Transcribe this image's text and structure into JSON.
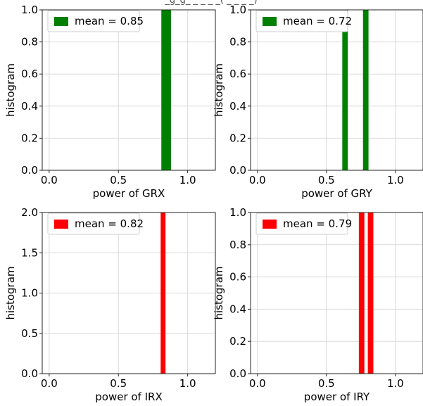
{
  "figure_title_fragment": "_g_g_ _ _ _ _( _ _ _ _)",
  "chart_data": [
    {
      "type": "bar",
      "xlabel": "power of GRX",
      "ylabel": "histogram",
      "xlim": [
        -0.05,
        1.2
      ],
      "ylim": [
        0,
        1.0
      ],
      "xticks": [
        0.0,
        0.5,
        1.0
      ],
      "xtick_labels": [
        "0.0",
        "0.5",
        "1.0"
      ],
      "yticks": [
        0.0,
        0.2,
        0.4,
        0.6,
        0.8,
        1.0
      ],
      "ytick_labels": [
        "0.0",
        "0.2",
        "0.4",
        "0.6",
        "0.8",
        "1.0"
      ],
      "bars": [
        {
          "x0": 0.81,
          "x1": 0.88,
          "value": 1
        }
      ],
      "color": "#008000",
      "legend": "mean = 0.85",
      "legend_position": "top-left",
      "grid": true
    },
    {
      "type": "bar",
      "xlabel": "power of GRY",
      "ylabel": "histogram",
      "xlim": [
        -0.05,
        1.2
      ],
      "ylim": [
        0,
        1.0
      ],
      "xticks": [
        0.0,
        0.5,
        1.0
      ],
      "xtick_labels": [
        "0.0",
        "0.5",
        "1.0"
      ],
      "yticks": [
        0.0,
        0.2,
        0.4,
        0.6,
        0.8,
        1.0
      ],
      "ytick_labels": [
        "0.0",
        "0.2",
        "0.4",
        "0.6",
        "0.8",
        "1.0"
      ],
      "bars": [
        {
          "x0": 0.615,
          "x1": 0.655,
          "value": 1
        },
        {
          "x0": 0.765,
          "x1": 0.805,
          "value": 1
        }
      ],
      "color": "#008000",
      "legend": "mean = 0.72",
      "legend_position": "top-left",
      "grid": true
    },
    {
      "type": "bar",
      "xlabel": "power of IRX",
      "ylabel": "histogram",
      "xlim": [
        -0.05,
        1.2
      ],
      "ylim": [
        0,
        2.0
      ],
      "xticks": [
        0.0,
        0.5,
        1.0
      ],
      "xtick_labels": [
        "0.0",
        "0.5",
        "1.0"
      ],
      "yticks": [
        0.0,
        0.5,
        1.0,
        1.5,
        2.0
      ],
      "ytick_labels": [
        "0.0",
        "0.5",
        "1.0",
        "1.5",
        "2.0"
      ],
      "bars": [
        {
          "x0": 0.805,
          "x1": 0.84,
          "value": 2
        }
      ],
      "color": "#ff0000",
      "legend": "mean = 0.82",
      "legend_position": "top-left",
      "grid": true
    },
    {
      "type": "bar",
      "xlabel": "power of IRY",
      "ylabel": "histogram",
      "xlim": [
        -0.05,
        1.2
      ],
      "ylim": [
        0,
        1.0
      ],
      "xticks": [
        0.0,
        0.5,
        1.0
      ],
      "xtick_labels": [
        "0.0",
        "0.5",
        "1.0"
      ],
      "yticks": [
        0.0,
        0.2,
        0.4,
        0.6,
        0.8,
        1.0
      ],
      "ytick_labels": [
        "0.0",
        "0.2",
        "0.4",
        "0.6",
        "0.8",
        "1.0"
      ],
      "bars": [
        {
          "x0": 0.735,
          "x1": 0.775,
          "value": 1
        },
        {
          "x0": 0.8,
          "x1": 0.84,
          "value": 1
        }
      ],
      "color": "#ff0000",
      "legend": "mean = 0.79",
      "legend_position": "top-left",
      "grid": true
    }
  ]
}
